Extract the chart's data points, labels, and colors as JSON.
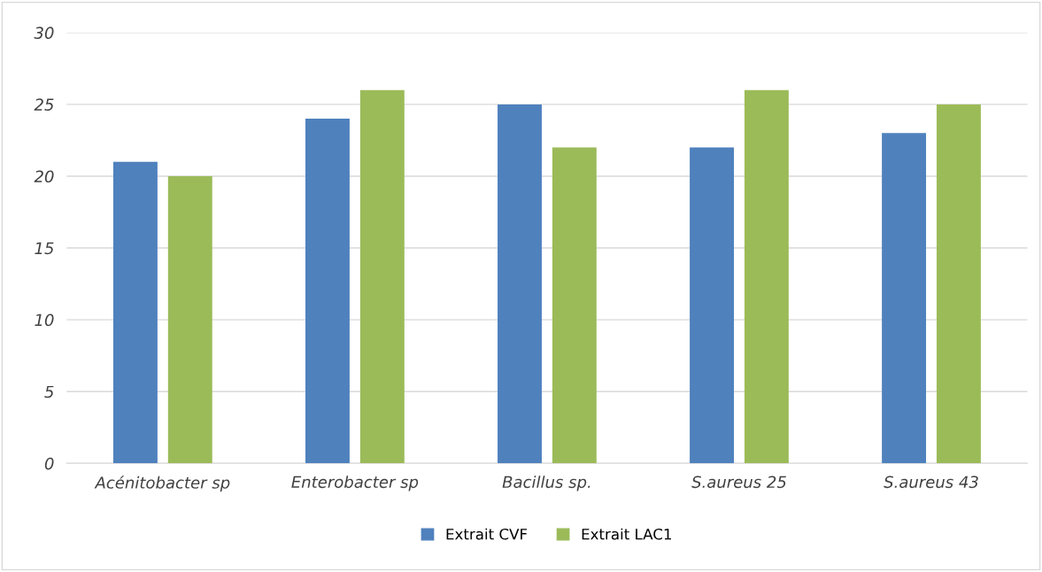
{
  "chart_data": {
    "type": "bar",
    "categories": [
      "Acénitobacter sp",
      "Enterobacter sp",
      "Bacillus sp.",
      "S.aureus 25",
      "S.aureus 43"
    ],
    "series": [
      {
        "name": "Extrait CVF",
        "color": "#4f81bd",
        "values": [
          21,
          24,
          25,
          22,
          23
        ]
      },
      {
        "name": "Extrait LAC1",
        "color": "#9bbb59",
        "values": [
          20,
          26,
          22,
          26,
          25
        ]
      }
    ],
    "ylim": [
      0,
      30
    ],
    "yticks": [
      0,
      5,
      10,
      15,
      20,
      25,
      30
    ],
    "grid": "y",
    "legend": "bottom"
  }
}
